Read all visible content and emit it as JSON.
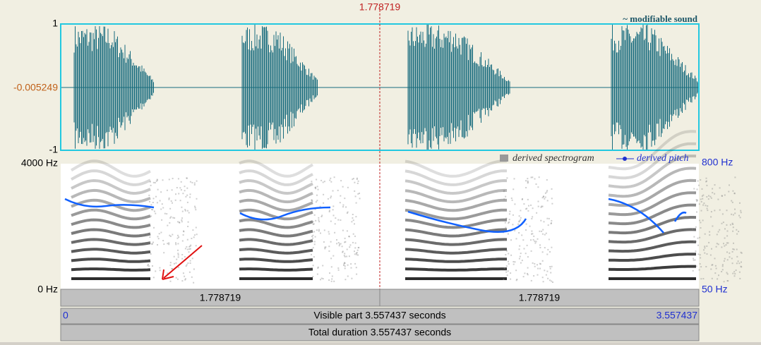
{
  "cursor_time": "1.778719",
  "waveform": {
    "title": "~ modifiable sound",
    "y_top": "1",
    "y_mid": "-0.005249",
    "y_bottom": "-1"
  },
  "spectrogram": {
    "freq_top": "4000 Hz",
    "freq_bottom": "0 Hz",
    "legend_spectrogram": "derived spectrogram",
    "legend_pitch": "derived pitch",
    "pitch_top": "800 Hz",
    "pitch_bottom": "50 Hz"
  },
  "time_bars": {
    "left_segment": "1.778719",
    "right_segment": "1.778719",
    "visible_start": "0",
    "visible_label": "Visible part 3.557437 seconds",
    "visible_end": "3.557437",
    "total_label": "Total duration 3.557437 seconds"
  }
}
